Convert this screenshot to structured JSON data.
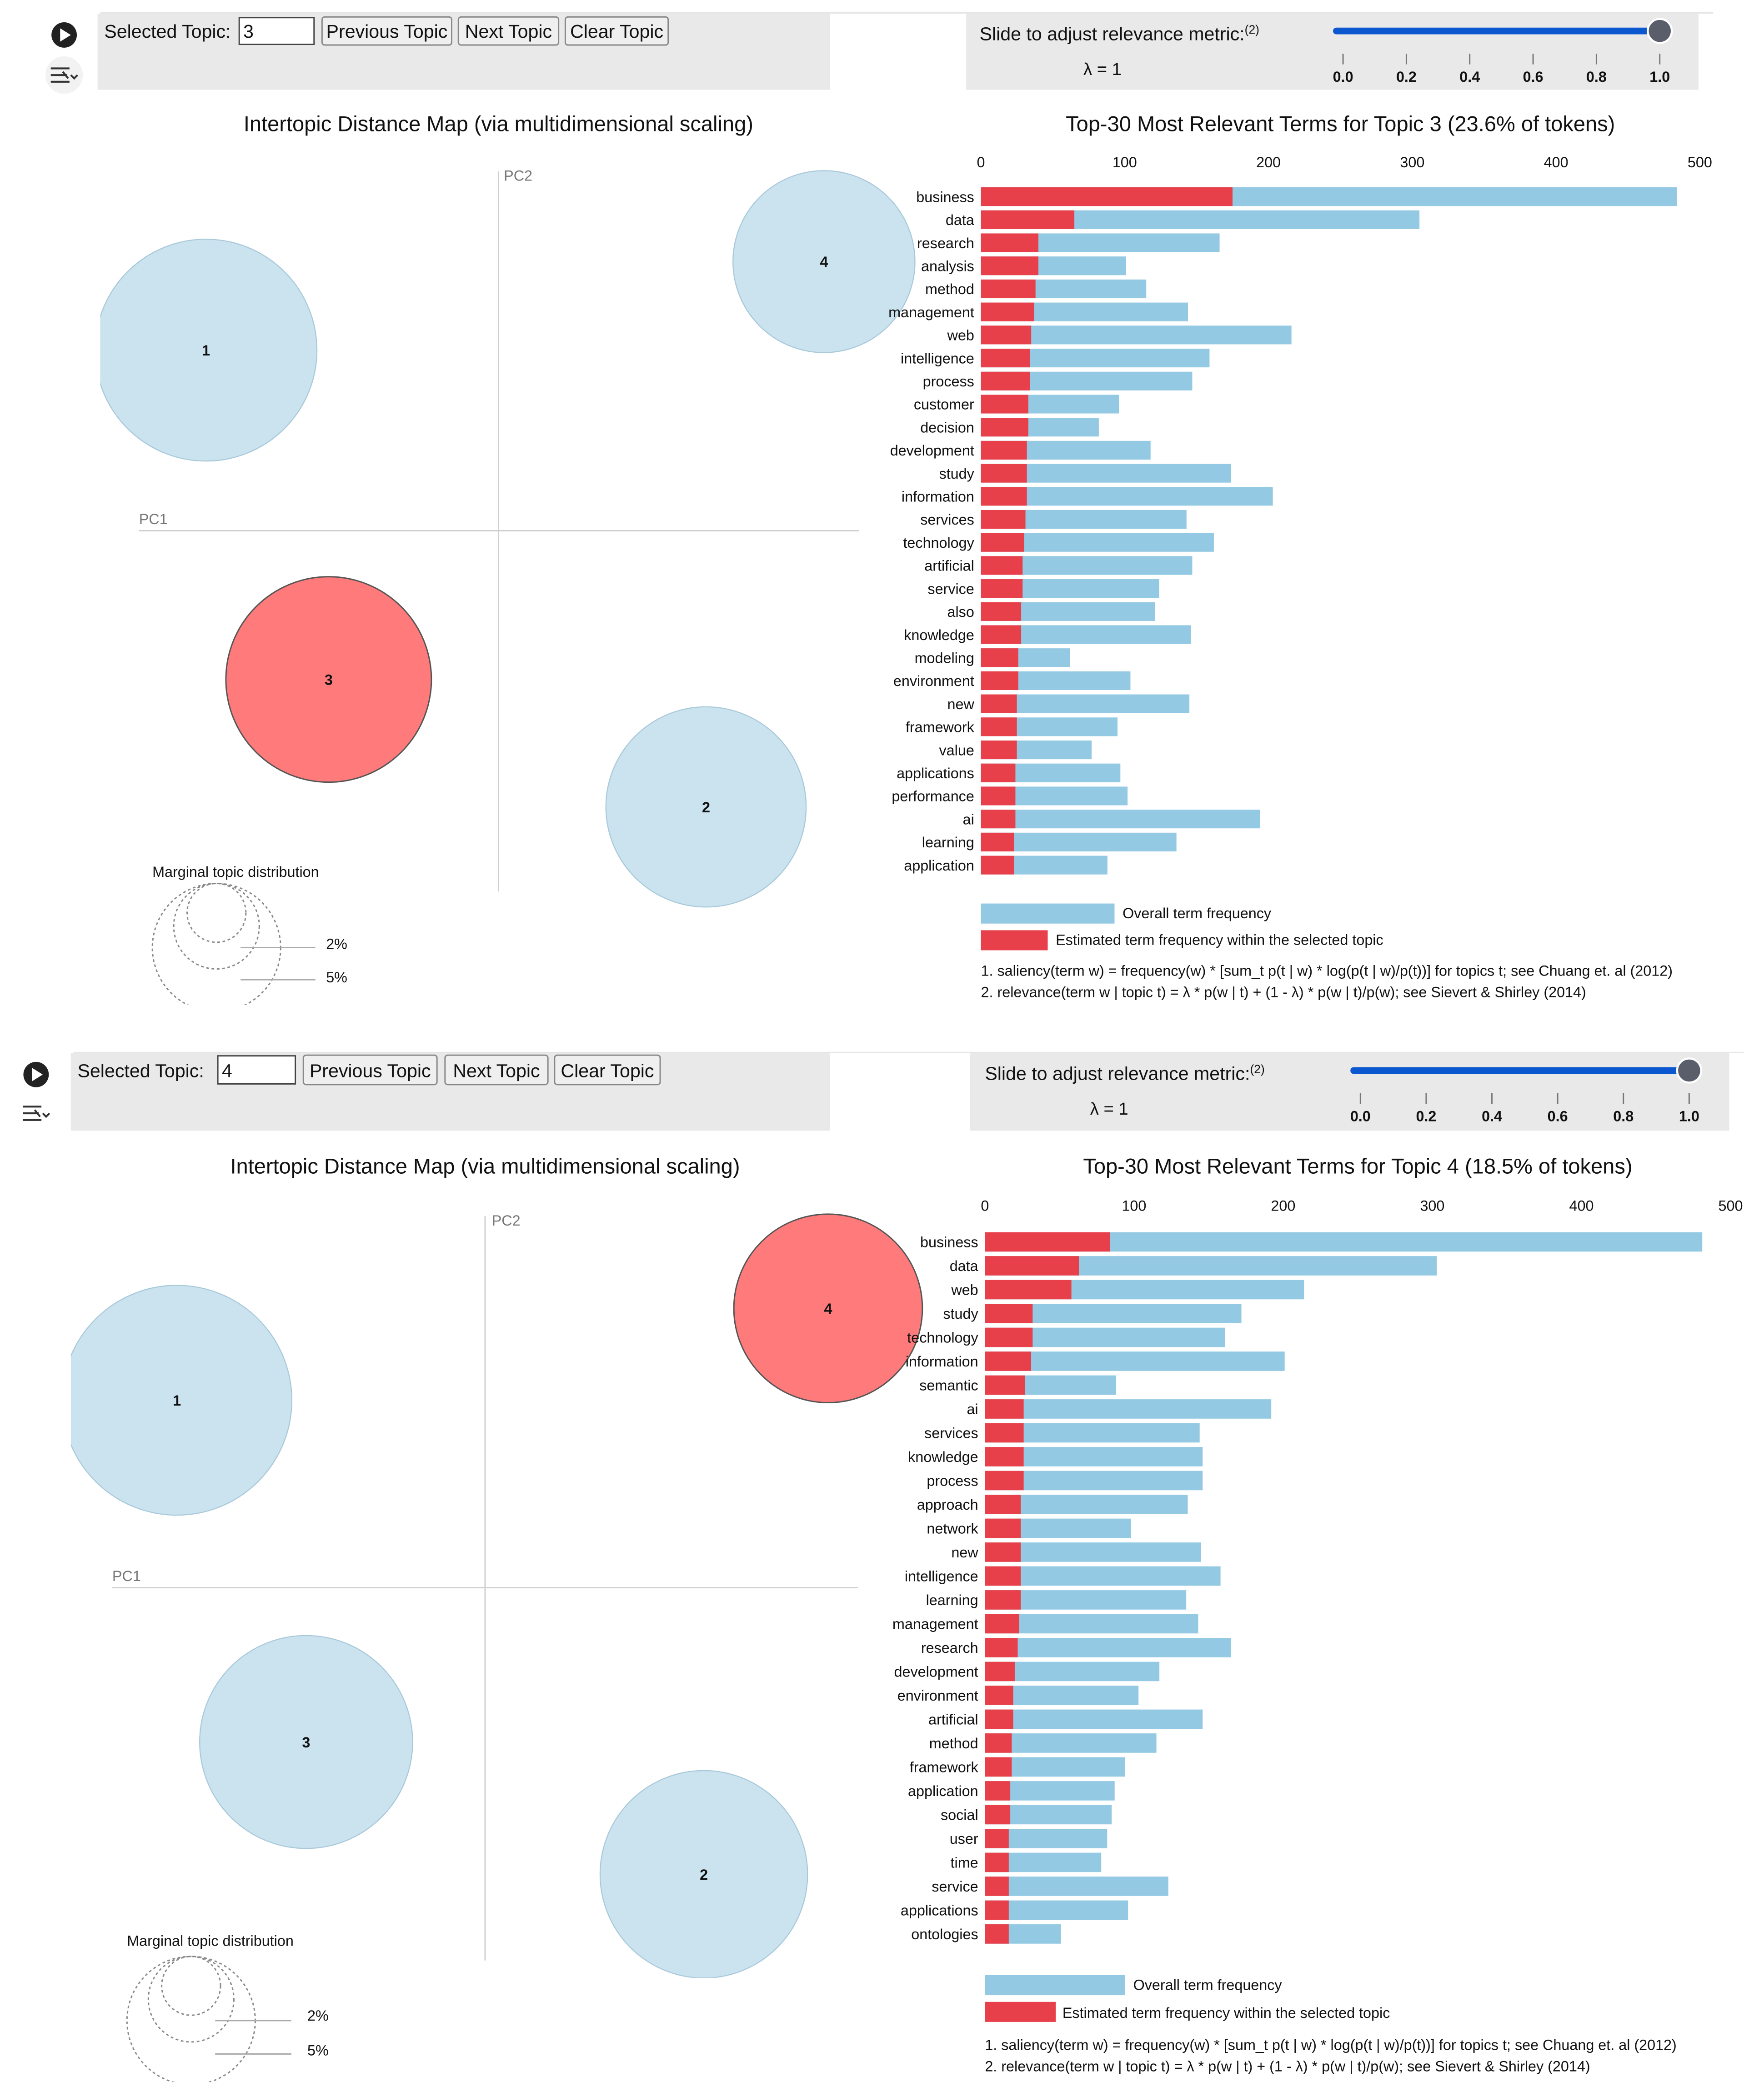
{
  "panels": [
    {
      "id": "panel-1",
      "toolbar": {
        "selected_topic_label": "Selected Topic:",
        "selected_topic_value": "3",
        "previous_label": "Previous Topic",
        "next_label": "Next Topic",
        "clear_label": "Clear Topic",
        "slider_label": "Slide to adjust relevance metric:",
        "slider_footnote": "(2)",
        "lambda_text": "λ = 1",
        "lambda_value": 1.0,
        "slider_ticks": [
          "0.0",
          "0.2",
          "0.4",
          "0.6",
          "0.8",
          "1.0"
        ]
      },
      "map": {
        "title": "Intertopic Distance Map (via multidimensional scaling)",
        "pc1_label": "PC1",
        "pc2_label": "PC2",
        "selected_topic": "3",
        "topics": [
          {
            "label": "1",
            "pc1": -0.62,
            "pc2": 0.51,
            "share": 0.275
          },
          {
            "label": "2",
            "pc1": 0.44,
            "pc2": -0.78,
            "share": 0.224
          },
          {
            "label": "3",
            "pc1": -0.36,
            "pc2": -0.42,
            "share": 0.236
          },
          {
            "label": "4",
            "pc1": 0.69,
            "pc2": 0.76,
            "share": 0.185
          }
        ],
        "marginal": {
          "title": "Marginal topic distribution",
          "levels": [
            "2%",
            "5%"
          ]
        }
      },
      "chart_data": {
        "type": "bar",
        "title": "Top-30 Most Relevant Terms for Topic 3 (23.6% of tokens)",
        "xlim": [
          0,
          500
        ],
        "x_ticks": [
          "0",
          "100",
          "200",
          "300",
          "400",
          "500"
        ],
        "terms": [
          "business",
          "data",
          "research",
          "analysis",
          "method",
          "management",
          "web",
          "intelligence",
          "process",
          "customer",
          "decision",
          "development",
          "study",
          "information",
          "services",
          "technology",
          "artificial",
          "service",
          "also",
          "knowledge",
          "modeling",
          "environment",
          "new",
          "framework",
          "value",
          "applications",
          "performance",
          "ai",
          "learning",
          "application"
        ],
        "series": [
          {
            "name": "Overall term frequency",
            "color": "#93c9e2",
            "values": [
              484,
              305,
              166,
              101,
              115,
              144,
              216,
              159,
              147,
              96,
              82,
              118,
              174,
              203,
              143,
              162,
              147,
              124,
              121,
              146,
              62,
              104,
              145,
              95,
              77,
              97,
              102,
              194,
              136,
              88
            ]
          },
          {
            "name": "Estimated term frequency within the selected topic",
            "color": "#e8404a",
            "values": [
              175,
              65,
              40,
              40,
              38,
              37,
              35,
              34,
              34,
              33,
              33,
              32,
              32,
              32,
              31,
              30,
              29,
              29,
              28,
              28,
              26,
              26,
              25,
              25,
              25,
              24,
              24,
              24,
              23,
              23
            ]
          }
        ]
      },
      "legend": {
        "overall_label": "Overall term frequency",
        "estimated_label": "Estimated term frequency within the selected topic"
      },
      "footnotes": {
        "saliency": "1. saliency(term w) = frequency(w) * [sum_t p(t | w) * log(p(t | w)/p(t))] for topics t; see Chuang et. al (2012)",
        "relevance": "2. relevance(term w | topic t) = λ * p(w | t) + (1 - λ) * p(w | t)/p(w); see Sievert & Shirley (2014)"
      }
    },
    {
      "id": "panel-2",
      "toolbar": {
        "selected_topic_label": "Selected Topic:",
        "selected_topic_value": "4",
        "previous_label": "Previous Topic",
        "next_label": "Next Topic",
        "clear_label": "Clear Topic",
        "slider_label": "Slide to adjust relevance metric:",
        "slider_footnote": "(2)",
        "lambda_text": "λ = 1",
        "lambda_value": 1.0,
        "slider_ticks": [
          "0.0",
          "0.2",
          "0.4",
          "0.6",
          "0.8",
          "1.0"
        ]
      },
      "map": {
        "title": "Intertopic Distance Map (via multidimensional scaling)",
        "pc1_label": "PC1",
        "pc2_label": "PC2",
        "selected_topic": "4",
        "topics": [
          {
            "label": "1",
            "pc1": -0.62,
            "pc2": 0.51,
            "share": 0.275
          },
          {
            "label": "2",
            "pc1": 0.44,
            "pc2": -0.78,
            "share": 0.224
          },
          {
            "label": "3",
            "pc1": -0.36,
            "pc2": -0.42,
            "share": 0.236
          },
          {
            "label": "4",
            "pc1": 0.69,
            "pc2": 0.76,
            "share": 0.185
          }
        ],
        "marginal": {
          "title": "Marginal topic distribution",
          "levels": [
            "2%",
            "5%"
          ]
        }
      },
      "chart_data": {
        "type": "bar",
        "title": "Top-30 Most Relevant Terms for Topic 4 (18.5% of tokens)",
        "xlim": [
          0,
          500
        ],
        "x_ticks": [
          "0",
          "100",
          "200",
          "300",
          "400",
          "500"
        ],
        "terms": [
          "business",
          "data",
          "web",
          "study",
          "technology",
          "information",
          "semantic",
          "ai",
          "services",
          "knowledge",
          "process",
          "approach",
          "network",
          "new",
          "intelligence",
          "learning",
          "management",
          "research",
          "development",
          "environment",
          "artificial",
          "method",
          "framework",
          "application",
          "social",
          "user",
          "time",
          "service",
          "applications",
          "ontologies"
        ],
        "series": [
          {
            "name": "Overall term frequency",
            "color": "#93c9e2",
            "values": [
              481,
              303,
              214,
              172,
              161,
              201,
              88,
              192,
              144,
              146,
              146,
              136,
              98,
              145,
              158,
              135,
              143,
              165,
              117,
              103,
              146,
              115,
              94,
              87,
              85,
              82,
              78,
              123,
              96,
              51
            ]
          },
          {
            "name": "Estimated term frequency within the selected topic",
            "color": "#e8404a",
            "values": [
              84,
              63,
              58,
              32,
              32,
              31,
              27,
              26,
              26,
              26,
              26,
              24,
              24,
              24,
              24,
              24,
              23,
              22,
              20,
              19,
              19,
              18,
              18,
              17,
              17,
              16,
              16,
              16,
              16,
              16
            ]
          }
        ]
      },
      "legend": {
        "overall_label": "Overall term frequency",
        "estimated_label": "Estimated term frequency within the selected topic"
      },
      "footnotes": {
        "saliency": "1. saliency(term w) = frequency(w) * [sum_t p(t | w) * log(p(t | w)/p(t))] for topics t; see Chuang et. al (2012)",
        "relevance": "2. relevance(term w | topic t) = λ * p(w | t) + (1 - λ) * p(w | t)/p(w); see Sievert & Shirley (2014)"
      }
    }
  ]
}
